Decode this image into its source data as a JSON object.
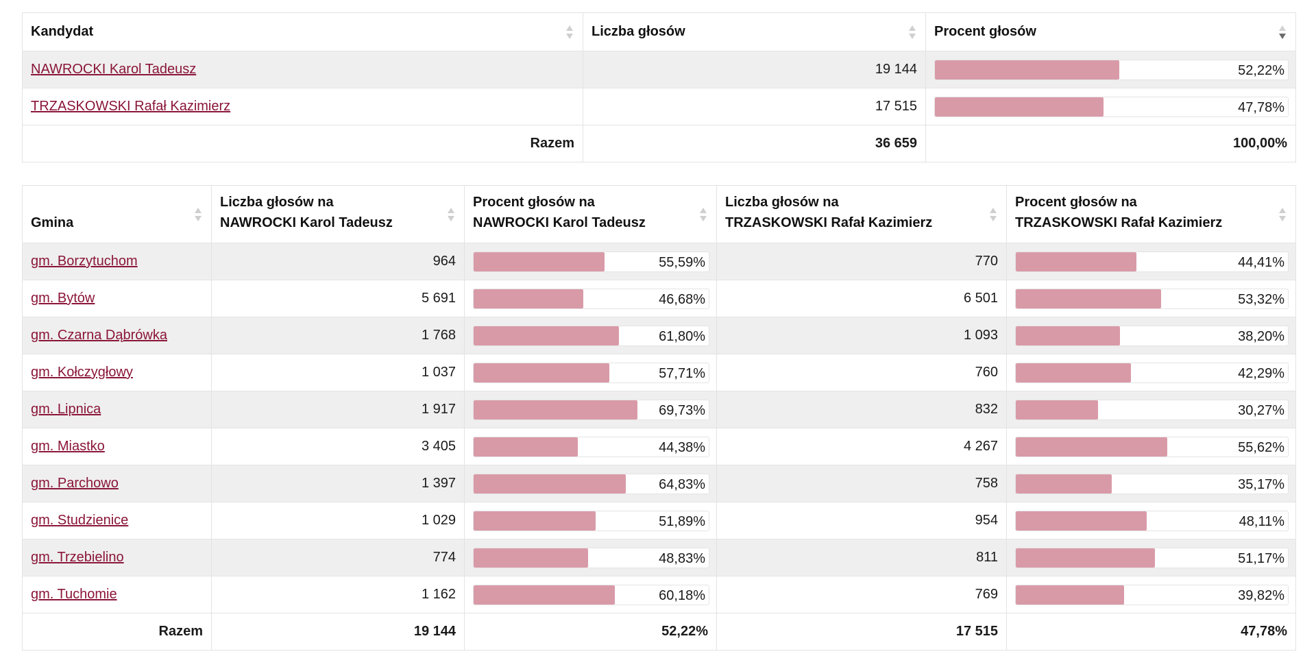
{
  "colors": {
    "bar_fill": "#d99aa8",
    "link": "#8a1538",
    "row_alt": "#efefef"
  },
  "summary": {
    "headers": {
      "candidate": "Kandydat",
      "votes": "Liczba głosów",
      "percent": "Procent głosów"
    },
    "rows": [
      {
        "name": "NAWROCKI Karol Tadeusz",
        "votes": "19 144",
        "percent_label": "52,22%",
        "percent": 52.22
      },
      {
        "name": "TRZASKOWSKI Rafał Kazimierz",
        "votes": "17 515",
        "percent_label": "47,78%",
        "percent": 47.78
      }
    ],
    "total": {
      "label": "Razem",
      "votes": "36 659",
      "percent": "100,00%"
    }
  },
  "gminas": {
    "headers": {
      "gmina": "Gmina",
      "n_votes_l1": "Liczba głosów na",
      "n_votes_l2": "NAWROCKI Karol Tadeusz",
      "n_pct_l1": "Procent głosów na",
      "n_pct_l2": "NAWROCKI Karol Tadeusz",
      "t_votes_l1": "Liczba głosów na",
      "t_votes_l2": "TRZASKOWSKI Rafał Kazimierz",
      "t_pct_l1": "Procent głosów na",
      "t_pct_l2": "TRZASKOWSKI Rafał Kazimierz"
    },
    "rows": [
      {
        "name": "gm. Borzytuchom",
        "n_votes": "964",
        "n_pct_label": "55,59%",
        "n_pct": 55.59,
        "t_votes": "770",
        "t_pct_label": "44,41%",
        "t_pct": 44.41
      },
      {
        "name": "gm. Bytów",
        "n_votes": "5 691",
        "n_pct_label": "46,68%",
        "n_pct": 46.68,
        "t_votes": "6 501",
        "t_pct_label": "53,32%",
        "t_pct": 53.32
      },
      {
        "name": "gm. Czarna Dąbrówka",
        "n_votes": "1 768",
        "n_pct_label": "61,80%",
        "n_pct": 61.8,
        "t_votes": "1 093",
        "t_pct_label": "38,20%",
        "t_pct": 38.2
      },
      {
        "name": "gm. Kołczygłowy",
        "n_votes": "1 037",
        "n_pct_label": "57,71%",
        "n_pct": 57.71,
        "t_votes": "760",
        "t_pct_label": "42,29%",
        "t_pct": 42.29
      },
      {
        "name": "gm. Lipnica",
        "n_votes": "1 917",
        "n_pct_label": "69,73%",
        "n_pct": 69.73,
        "t_votes": "832",
        "t_pct_label": "30,27%",
        "t_pct": 30.27
      },
      {
        "name": "gm. Miastko",
        "n_votes": "3 405",
        "n_pct_label": "44,38%",
        "n_pct": 44.38,
        "t_votes": "4 267",
        "t_pct_label": "55,62%",
        "t_pct": 55.62
      },
      {
        "name": "gm. Parchowo",
        "n_votes": "1 397",
        "n_pct_label": "64,83%",
        "n_pct": 64.83,
        "t_votes": "758",
        "t_pct_label": "35,17%",
        "t_pct": 35.17
      },
      {
        "name": "gm. Studzienice",
        "n_votes": "1 029",
        "n_pct_label": "51,89%",
        "n_pct": 51.89,
        "t_votes": "954",
        "t_pct_label": "48,11%",
        "t_pct": 48.11
      },
      {
        "name": "gm. Trzebielino",
        "n_votes": "774",
        "n_pct_label": "48,83%",
        "n_pct": 48.83,
        "t_votes": "811",
        "t_pct_label": "51,17%",
        "t_pct": 51.17
      },
      {
        "name": "gm. Tuchomie",
        "n_votes": "1 162",
        "n_pct_label": "60,18%",
        "n_pct": 60.18,
        "t_votes": "769",
        "t_pct_label": "39,82%",
        "t_pct": 39.82
      }
    ],
    "total": {
      "label": "Razem",
      "n_votes": "19 144",
      "n_pct": "52,22%",
      "t_votes": "17 515",
      "t_pct": "47,78%"
    }
  }
}
